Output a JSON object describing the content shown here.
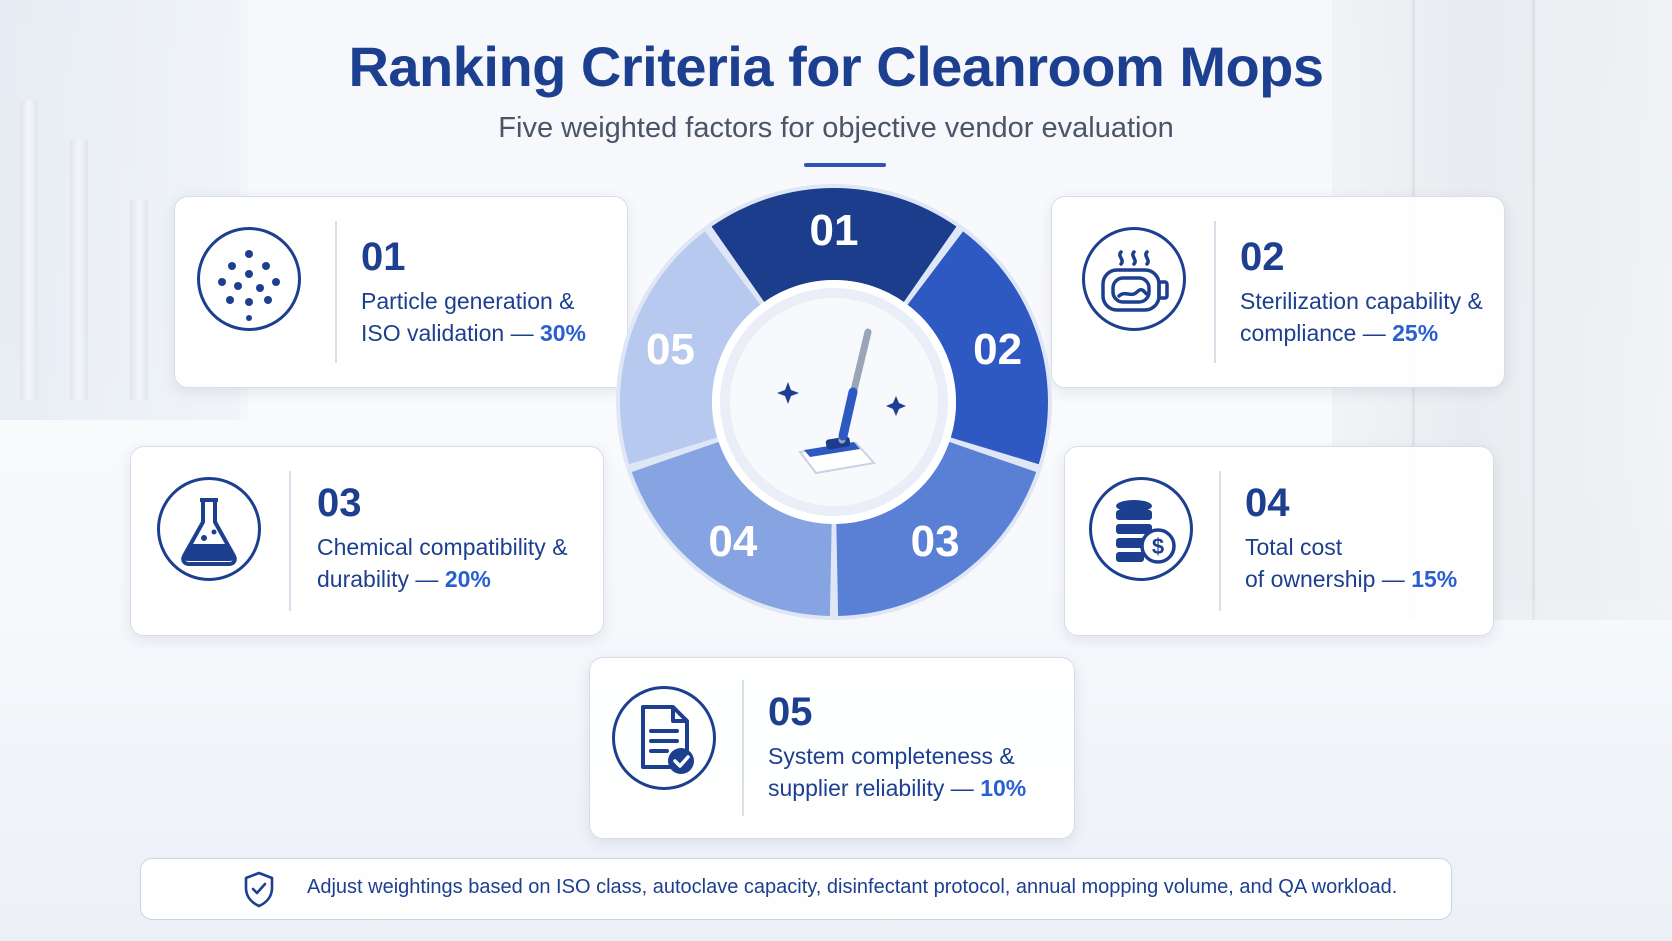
{
  "title": "Ranking Criteria for Cleanroom Mops",
  "subtitle": "Five weighted factors for objective vendor evaluation",
  "wheel": {
    "segments": [
      {
        "label": "01",
        "color": "#1b3d8c"
      },
      {
        "label": "02",
        "color": "#2f59c2"
      },
      {
        "label": "03",
        "color": "#5a80d6"
      },
      {
        "label": "04",
        "color": "#86a4e2"
      },
      {
        "label": "05",
        "color": "#b8c9ef"
      }
    ]
  },
  "criteria": [
    {
      "num": "01",
      "line1": "Particle generation &",
      "line2_text": "ISO validation — ",
      "pct": "30%",
      "icon": "particles-icon"
    },
    {
      "num": "02",
      "line1": "Sterilization capability &",
      "line2_text": "compliance — ",
      "pct": "25%",
      "icon": "autoclave-icon"
    },
    {
      "num": "03",
      "line1": "Chemical compatibility &",
      "line2_text": "durability — ",
      "pct": "20%",
      "icon": "flask-icon"
    },
    {
      "num": "04",
      "line1": "Total cost",
      "line2_text": "of ownership — ",
      "pct": "15%",
      "icon": "coins-dollar-icon"
    },
    {
      "num": "05",
      "line1": "System completeness &",
      "line2_text": "supplier reliability — ",
      "pct": "10%",
      "icon": "document-check-icon"
    }
  ],
  "note": "Adjust weightings based on ISO class, autoclave capacity, disinfectant protocol, annual mopping volume, and QA workload.",
  "colors": {
    "primary": "#1d3f8f",
    "accent": "#2a5fd0"
  }
}
